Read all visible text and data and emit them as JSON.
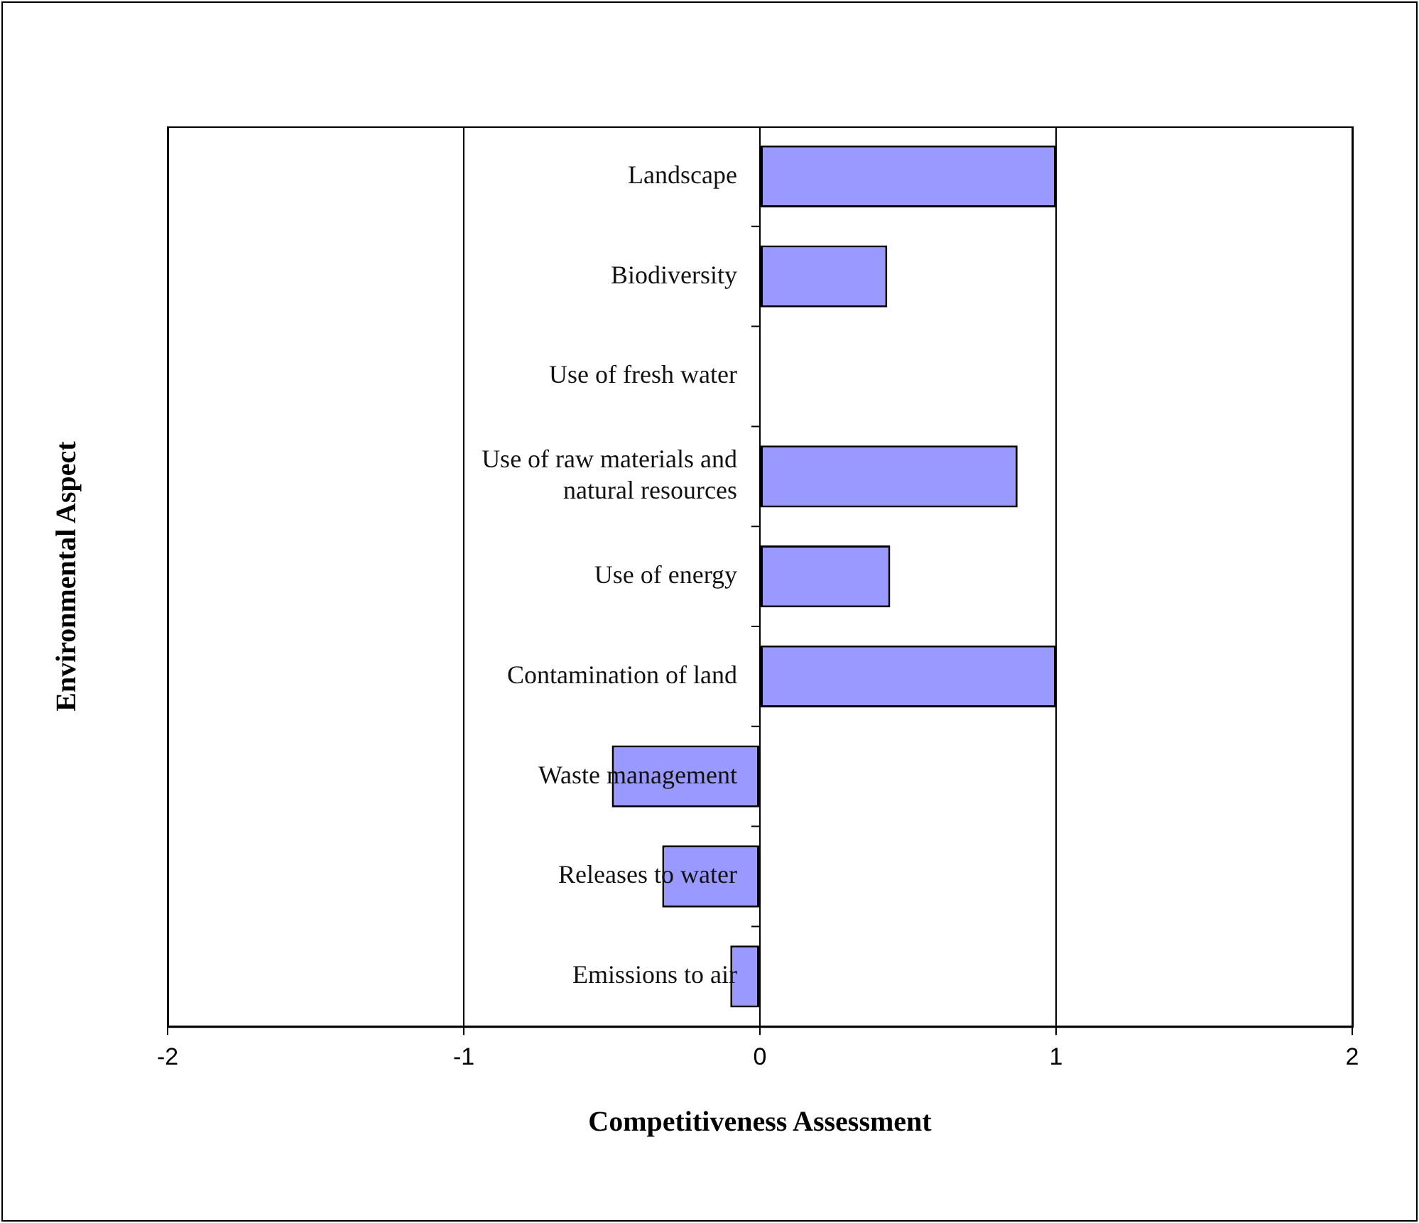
{
  "chart_data": {
    "type": "bar",
    "orientation": "horizontal",
    "xlabel": "Competitiveness Assessment",
    "ylabel": "Environmental Aspect",
    "categories": [
      "Landscape",
      "Biodiversity",
      "Use of fresh water",
      "Use of raw materials and natural resources",
      "Use of energy",
      "Contamination of land",
      "Waste management",
      "Releases to water",
      "Emissions to air"
    ],
    "values": [
      1,
      0.43,
      0,
      0.87,
      0.44,
      1,
      -0.5,
      -0.33,
      -0.1
    ],
    "color": "#9999ff",
    "xlim": [
      -2,
      2
    ],
    "xticks": [
      -2,
      -1,
      0,
      1,
      2
    ],
    "grid": "x",
    "legend": false
  }
}
